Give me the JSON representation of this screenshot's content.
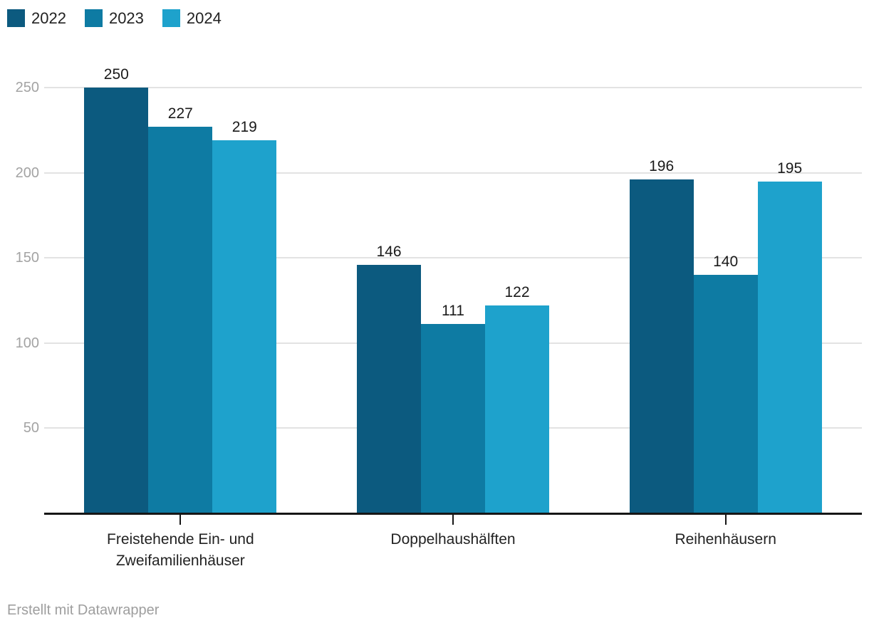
{
  "chart_data": {
    "type": "bar",
    "title": "",
    "categories": [
      "Freistehende Ein- und Zweifamilienhäuser",
      "Doppelhaushälften",
      "Reihenhäusern"
    ],
    "series": [
      {
        "name": "2022",
        "color": "#0c5a7f",
        "values": [
          250,
          146,
          196
        ]
      },
      {
        "name": "2023",
        "color": "#0e7ba3",
        "values": [
          227,
          111,
          140
        ]
      },
      {
        "name": "2024",
        "color": "#1ea2cc",
        "values": [
          219,
          122,
          195
        ]
      }
    ],
    "value_labels": [
      [
        "250",
        "227",
        "219"
      ],
      [
        "146",
        "111",
        "122"
      ],
      [
        "196",
        "140",
        "195"
      ]
    ],
    "yticks": [
      "50",
      "100",
      "150",
      "200",
      "250"
    ],
    "ylim": [
      0,
      250
    ],
    "grid": true,
    "legend_position": "top-left"
  },
  "colors": {
    "grid": "#e3e3e3",
    "axis": "#161616",
    "y_tick_label": "#a3a3a3",
    "text": "#222222",
    "value_label": "#1a1a1a",
    "footer_text": "#9e9e9e",
    "background": "#ffffff"
  },
  "footer": {
    "attribution": "Erstellt mit Datawrapper"
  }
}
